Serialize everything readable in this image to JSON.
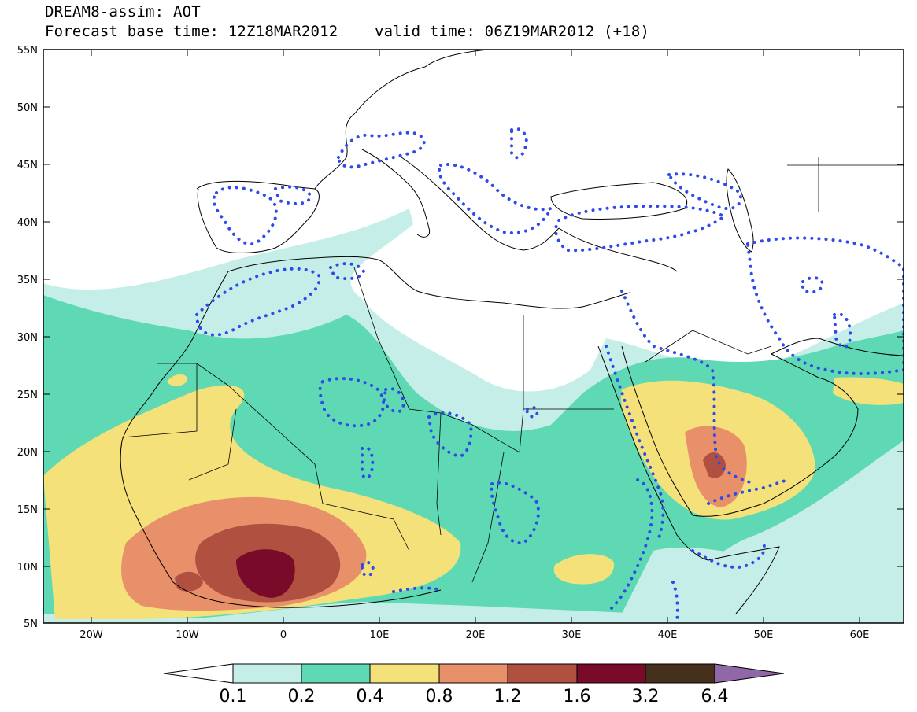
{
  "header": {
    "title": "DREAM8-assim: AOT",
    "base_time_label": "Forecast base time: 12Z18MAR2012",
    "valid_time_label": "valid time: 06Z19MAR2012 (+18)"
  },
  "axes": {
    "lon_ticks": [
      "20W",
      "10W",
      "0",
      "10E",
      "20E",
      "30E",
      "40E",
      "50E",
      "60E"
    ],
    "lat_ticks": [
      "55N",
      "50N",
      "45N",
      "40N",
      "35N",
      "30N",
      "25N",
      "20N",
      "15N",
      "10N",
      "5N"
    ]
  },
  "colorbar": {
    "labels": [
      "0.1",
      "0.2",
      "0.4",
      "0.8",
      "1.2",
      "1.6",
      "3.2",
      "6.4"
    ],
    "colors": [
      "#ffffff",
      "#c6eee8",
      "#5fd9b4",
      "#f5e17a",
      "#e8906a",
      "#b05040",
      "#7a0a2a",
      "#45301e",
      "#9068a8"
    ]
  },
  "colors": {
    "dust_contour": "#2e4ae8",
    "coast": "#000000"
  }
}
